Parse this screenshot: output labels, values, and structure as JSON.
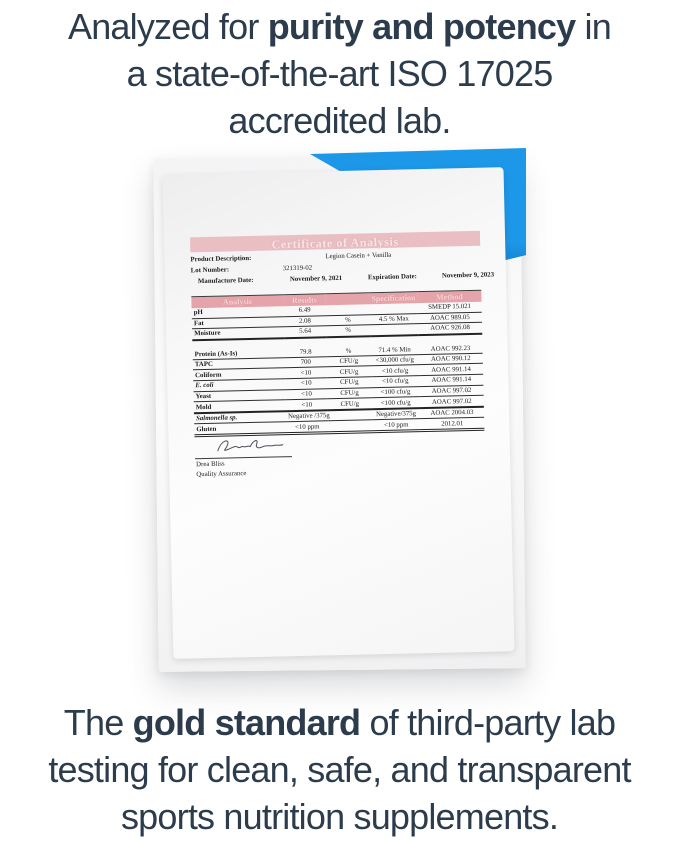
{
  "headline_top": {
    "line1_pre": "Analyzed for ",
    "line1_bold": "purity and potency",
    "line1_post": " in",
    "line2": "a state-of-the-art ISO 17025",
    "line3": "accredited lab."
  },
  "headline_bottom": {
    "line1_pre": "The ",
    "line1_bold": "gold standard",
    "line1_post": " of third-party lab",
    "line2": "testing for clean, safe, and transparent",
    "line3": "sports nutrition supplements."
  },
  "certificate": {
    "title": "Certificate of Analysis",
    "fields": {
      "product_description_label": "Product Description:",
      "product_description_value": "Legion Casein + Vanilla",
      "lot_number_label": "Lot Number:",
      "lot_number_value": "321319-02",
      "manufacture_date_label": "Manufacture Date:",
      "manufacture_date_value": "November 9, 2021",
      "expiration_date_label": "Expiration Date:",
      "expiration_date_value": "November 9, 2023"
    },
    "table": {
      "headers": [
        "Analysis",
        "Results",
        "",
        "Specification",
        "Method"
      ],
      "rows": [
        {
          "cells": [
            "pH",
            "6.49",
            "",
            "",
            "SMEDP 15.021"
          ]
        },
        {
          "cells": [
            "Fat",
            "2.08",
            "%",
            "4.5 % Max",
            "AOAC 989.05"
          ]
        },
        {
          "cells": [
            "Moisture",
            "5.64",
            "%",
            "",
            "AOAC 926.08"
          ],
          "thick": true
        },
        {
          "cells": [
            "",
            "",
            "",
            "",
            ""
          ],
          "spacer": true
        },
        {
          "cells": [
            "Protein (As-Is)",
            "79.8",
            "%",
            "71.4 % Min",
            "AOAC 992.23"
          ]
        },
        {
          "cells": [
            "TAPC",
            "700",
            "CFU/g",
            "<30,000 cfu/g",
            "AOAC 990.12"
          ]
        },
        {
          "cells": [
            "Coliform",
            "<10",
            "CFU/g",
            "<10 cfu/g",
            "AOAC 991.14"
          ]
        },
        {
          "cells": [
            "E. coli",
            "<10",
            "CFU/g",
            "<10 cfu/g",
            "AOAC 991.14"
          ],
          "italic": true
        },
        {
          "cells": [
            "Yeast",
            "<10",
            "CFU/g",
            "<100 cfu/g",
            "AOAC 997.02"
          ]
        },
        {
          "cells": [
            "Mold",
            "<10",
            "CFU/g",
            "<100 cfu/g",
            "AOAC 997.02"
          ],
          "thick": true
        },
        {
          "cells": [
            "Salmonella sp.",
            "Negative /375g",
            "",
            "Negative/375g",
            "AOAC 2004.03"
          ],
          "italic": true
        },
        {
          "cells": [
            "Gluten",
            "<10 ppm",
            "",
            "<10 ppm",
            "2012.01"
          ],
          "dbl": true
        }
      ]
    },
    "signature": {
      "name": "Drea Bliss",
      "role": "Quality Assurance"
    }
  },
  "colors": {
    "accent_blue": "#1d97e8",
    "banner_pink": "#eabfc4",
    "header_pink": "#e5a4a9",
    "headline_text": "#2d3c4c"
  }
}
